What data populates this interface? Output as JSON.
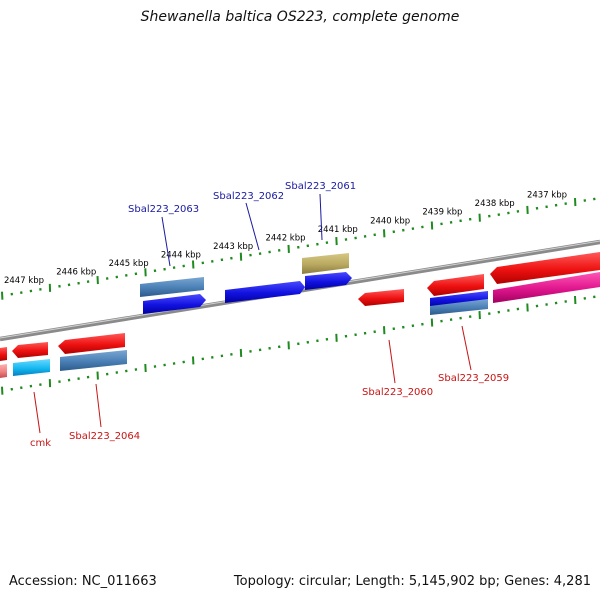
{
  "title": "Shewanella baltica OS223, complete genome",
  "accession_label": "Accession: NC_011663",
  "summary_label": "Topology: circular; Length: 5,145,902 bp; Genes: 4,281",
  "colors": {
    "backbone": "#8a8a8a",
    "tick": "#1f8a1f",
    "forward_label": "#1a1aa0",
    "reverse_label": "#c81414",
    "red": "#ee1111",
    "blue": "#1212e0",
    "steelblue": "#4a7fb5",
    "khaki": "#b8a860",
    "magenta": "#e0158c",
    "cyan": "#15b8f0",
    "pink": "#f08080"
  },
  "ruler": {
    "labels": [
      "2437 kbp",
      "2438 kbp",
      "2439 kbp",
      "2440 kbp",
      "2441 kbp",
      "2442 kbp",
      "2443 kbp",
      "2444 kbp",
      "2445 kbp",
      "2446 kbp",
      "2447 kbp"
    ]
  },
  "genes": {
    "forward_labels": [
      "Sbal223_2061",
      "Sbal223_2062",
      "Sbal223_2063"
    ],
    "reverse_labels": [
      "Sbal223_2059",
      "Sbal223_2060",
      "Sbal223_2064",
      "cmk"
    ]
  }
}
